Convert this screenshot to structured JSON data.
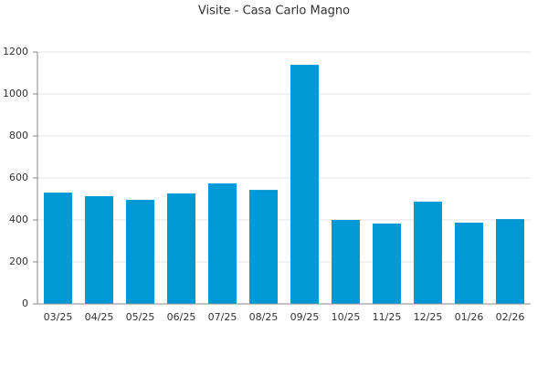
{
  "chart_data": {
    "type": "bar",
    "title": "Visite - Casa Carlo Magno",
    "categories": [
      "03/25",
      "04/25",
      "05/25",
      "06/25",
      "07/25",
      "08/25",
      "09/25",
      "10/25",
      "11/25",
      "12/25",
      "01/26",
      "02/26"
    ],
    "values": [
      530,
      513,
      496,
      526,
      574,
      543,
      1139,
      400,
      383,
      487,
      387,
      404
    ],
    "color": "#0099d6",
    "ylim": [
      0,
      1200
    ],
    "yticks": [
      0,
      200,
      400,
      600,
      800,
      1000,
      1200
    ],
    "grid": true
  }
}
